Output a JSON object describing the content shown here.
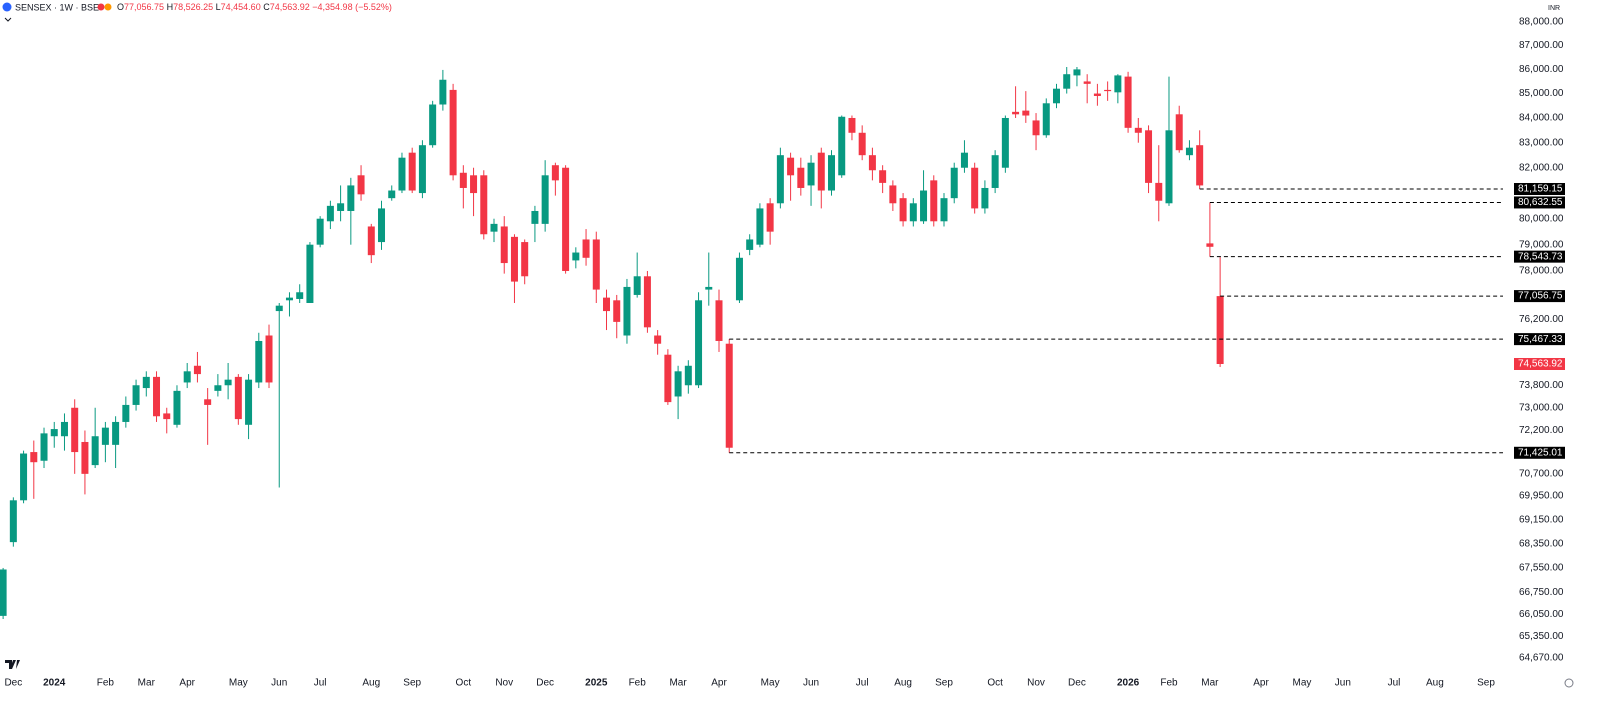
{
  "header": {
    "symbol": "SENSEX · 1W · BSE",
    "ohlc": [
      {
        "key": "O",
        "value": "77,056.75"
      },
      {
        "key": "H",
        "value": "78,526.25"
      },
      {
        "key": "L",
        "value": "74,454.60"
      },
      {
        "key": "C",
        "value": "74,563.92"
      }
    ],
    "change": "−4,354.98 (−5.52%)",
    "currency": "INR"
  },
  "chart_data": {
    "type": "candlestick",
    "log_scale": true,
    "grid": false,
    "up_color": "#089981",
    "down_color": "#f23645",
    "level_color": "#000000",
    "categories": [
      null,
      "Dec",
      null,
      null,
      null,
      "2024",
      null,
      null,
      null,
      null,
      "Feb",
      null,
      null,
      null,
      "Mar",
      null,
      null,
      null,
      "Apr",
      null,
      null,
      null,
      null,
      "May",
      null,
      null,
      null,
      "Jun",
      null,
      null,
      null,
      "Jul",
      null,
      null,
      null,
      null,
      "Aug",
      null,
      null,
      null,
      "Sep",
      null,
      null,
      null,
      null,
      "Oct",
      null,
      null,
      null,
      "Nov",
      null,
      null,
      null,
      "Dec",
      null,
      null,
      null,
      null,
      "2025",
      null,
      null,
      null,
      "Feb",
      null,
      null,
      null,
      "Mar",
      null,
      null,
      null,
      "Apr",
      null,
      null,
      null,
      null,
      "May",
      null,
      null,
      null,
      "Jun",
      null,
      null,
      null,
      null,
      "Jul",
      null,
      null,
      null,
      "Aug",
      null,
      null,
      null,
      "Sep",
      null,
      null,
      null,
      null,
      "Oct",
      null,
      null,
      null,
      "Nov",
      null,
      null,
      null,
      "Dec",
      null,
      null,
      null,
      null,
      "2026",
      null,
      null,
      null,
      "Feb",
      null,
      null,
      null,
      "Mar",
      null,
      null,
      null,
      null,
      "Apr",
      null,
      null,
      null,
      "May",
      null,
      null,
      null,
      "Jun",
      null,
      null,
      null,
      null,
      "Jul",
      null,
      null,
      null,
      "Aug",
      null,
      null,
      null,
      null,
      "Sep"
    ],
    "open": [
      66000,
      68400,
      69800,
      71450,
      71150,
      72000,
      72000,
      73000,
      71800,
      71000,
      71700,
      71700,
      72500,
      73100,
      73700,
      74100,
      72800,
      72400,
      73900,
      74500,
      73300,
      73600,
      73800,
      74100,
      72400,
      73900,
      75600,
      76500,
      76900,
      76950,
      76800,
      79000,
      79900,
      80300,
      80300,
      81700,
      79700,
      79100,
      80800,
      81100,
      82600,
      81000,
      82900,
      84550,
      85150,
      81800,
      81700,
      81700,
      79500,
      79700,
      79300,
      79100,
      79800,
      79800,
      82100,
      82000,
      78400,
      79200,
      79200,
      77000,
      76900,
      75600,
      77100,
      77800,
      75600,
      74900,
      73400,
      73800,
      73800,
      77300,
      76900,
      75300,
      76900,
      78800,
      79000,
      80600,
      80600,
      82400,
      82000,
      81300,
      82600,
      81100,
      81700,
      84000,
      83400,
      82500,
      81900,
      81300,
      80800,
      79900,
      79900,
      81500,
      79900,
      80800,
      82000,
      82000,
      80400,
      81200,
      82000,
      84250,
      84300,
      83900,
      83300,
      84600,
      85200,
      85750,
      85500,
      85000,
      85150,
      85050,
      85700,
      83600,
      83500,
      81400,
      80600,
      84150,
      82500,
      82900,
      79050,
      77056.75,
      null,
      null,
      null,
      null,
      null,
      null,
      null,
      null,
      null,
      null,
      null,
      null,
      null,
      null,
      null,
      null,
      null,
      null,
      null,
      null,
      null,
      null,
      null,
      null,
      null,
      null
    ],
    "high": [
      67550,
      69900,
      71500,
      71850,
      72300,
      72500,
      72800,
      73300,
      72200,
      73000,
      72500,
      72700,
      73400,
      74000,
      74300,
      74300,
      73000,
      73800,
      74600,
      75000,
      73700,
      74200,
      74600,
      74200,
      74200,
      75700,
      76000,
      76800,
      77200,
      77500,
      79100,
      80100,
      80700,
      81300,
      81600,
      82100,
      79800,
      80700,
      81300,
      82600,
      82800,
      83100,
      84700,
      85978,
      85400,
      82100,
      82000,
      81900,
      80000,
      80100,
      79400,
      79200,
      80500,
      82300,
      82200,
      82100,
      78900,
      79600,
      79500,
      77300,
      77100,
      77700,
      78700,
      78000,
      75800,
      75100,
      74500,
      74700,
      77200,
      78700,
      77300,
      75467.33,
      78700,
      79400,
      80600,
      80800,
      82800,
      82600,
      82400,
      82500,
      82800,
      82700,
      84100,
      84100,
      83700,
      82800,
      82100,
      81500,
      81000,
      80800,
      81900,
      81700,
      81000,
      82200,
      83100,
      82200,
      81500,
      82700,
      84100,
      85300,
      85100,
      84200,
      84800,
      85400,
      86100,
      86100,
      85800,
      85400,
      85500,
      85800,
      85900,
      84000,
      83700,
      82900,
      85700,
      84500,
      83100,
      83500,
      80632.55,
      78526.25,
      null,
      null,
      null,
      null,
      null,
      null,
      null,
      null,
      null,
      null,
      null,
      null,
      null,
      null,
      null,
      null,
      null,
      null,
      null,
      null,
      null,
      null,
      null,
      null,
      null,
      null
    ],
    "low": [
      65900,
      68250,
      69700,
      69850,
      70900,
      71600,
      71500,
      70700,
      70000,
      70900,
      71100,
      70900,
      72300,
      72900,
      73400,
      72500,
      72100,
      72300,
      73700,
      73900,
      71700,
      73400,
      73300,
      72400,
      71900,
      73700,
      73700,
      70234,
      76300,
      76800,
      76800,
      78900,
      79600,
      79900,
      79000,
      80700,
      78300,
      78800,
      80700,
      81000,
      81000,
      80800,
      82800,
      84300,
      81500,
      80400,
      80100,
      79200,
      79100,
      77900,
      76800,
      77500,
      79100,
      79500,
      80900,
      77900,
      78100,
      78200,
      76800,
      75800,
      75500,
      75300,
      77000,
      75700,
      74900,
      73100,
      72600,
      73500,
      73700,
      76700,
      75000,
      71425.01,
      76800,
      78600,
      78900,
      79000,
      80400,
      80700,
      80900,
      80500,
      80400,
      80900,
      81600,
      83100,
      82300,
      81500,
      81000,
      80300,
      79700,
      79700,
      79800,
      79700,
      79700,
      80600,
      81800,
      80200,
      80200,
      81000,
      81800,
      84000,
      83800,
      82700,
      83200,
      84400,
      85000,
      85300,
      84600,
      84500,
      84700,
      84600,
      83400,
      83000,
      81000,
      79900,
      80500,
      82600,
      82300,
      81159.15,
      78543.73,
      74454.6,
      null,
      null,
      null,
      null,
      null,
      null,
      null,
      null,
      null,
      null,
      null,
      null,
      null,
      null,
      null,
      null,
      null,
      null,
      null,
      null,
      null,
      null,
      null,
      null,
      null,
      null
    ],
    "close": [
      67500,
      69800,
      71400,
      71100,
      72100,
      72250,
      72500,
      71450,
      70700,
      72000,
      72300,
      72500,
      73100,
      73800,
      74100,
      72700,
      72600,
      73600,
      74300,
      74200,
      73100,
      73800,
      74000,
      72600,
      74000,
      75400,
      73900,
      76700,
      77000,
      77200,
      79000,
      80000,
      80500,
      80600,
      81300,
      80950,
      78600,
      80400,
      81100,
      82400,
      81100,
      82900,
      84550,
      85570,
      81700,
      81200,
      81000,
      79400,
      79800,
      78300,
      77600,
      77800,
      80300,
      81700,
      81500,
      78000,
      78700,
      78500,
      77300,
      76500,
      76100,
      77400,
      77800,
      75900,
      75300,
      73200,
      74300,
      74500,
      76900,
      77400,
      75400,
      71600,
      78500,
      79200,
      80400,
      79500,
      82500,
      81700,
      81200,
      82200,
      81100,
      82500,
      84050,
      83400,
      82500,
      81900,
      81400,
      80600,
      79900,
      80600,
      81100,
      79900,
      80800,
      82000,
      82600,
      80400,
      81200,
      82500,
      84000,
      84150,
      84100,
      83300,
      84600,
      85200,
      85800,
      86000,
      85400,
      84900,
      85100,
      85750,
      83600,
      83400,
      81400,
      80700,
      83500,
      82700,
      82800,
      81300,
      78918.9,
      74563.92,
      null,
      null,
      null,
      null,
      null,
      null,
      null,
      null,
      null,
      null,
      null,
      null,
      null,
      null,
      null,
      null,
      null,
      null,
      null,
      null,
      null,
      null,
      null,
      null,
      null,
      null
    ],
    "ylim": [
      64230,
      88940
    ],
    "yticks": [
      {
        "value": 88000,
        "label": "88,000.00"
      },
      {
        "value": 87000,
        "label": "87,000.00"
      },
      {
        "value": 86000,
        "label": "86,000.00"
      },
      {
        "value": 85000,
        "label": "85,000.00"
      },
      {
        "value": 84000,
        "label": "84,000.00"
      },
      {
        "value": 83000,
        "label": "83,000.00"
      },
      {
        "value": 82000,
        "label": "82,000.00"
      },
      {
        "value": 80000,
        "label": "80,000.00"
      },
      {
        "value": 79000,
        "label": "79,000.00"
      },
      {
        "value": 78000,
        "label": "78,000.00"
      },
      {
        "value": 76200,
        "label": "76,200.00"
      },
      {
        "value": 73800,
        "label": "73,800.00"
      },
      {
        "value": 73000,
        "label": "73,000.00"
      },
      {
        "value": 72200,
        "label": "72,200.00"
      },
      {
        "value": 70700,
        "label": "70,700.00"
      },
      {
        "value": 69950,
        "label": "69,950.00"
      },
      {
        "value": 69150,
        "label": "69,150.00"
      },
      {
        "value": 68350,
        "label": "68,350.00"
      },
      {
        "value": 67550,
        "label": "67,550.00"
      },
      {
        "value": 66750,
        "label": "66,750.00"
      },
      {
        "value": 66050,
        "label": "66,050.00"
      },
      {
        "value": 65350,
        "label": "65,350.00"
      },
      {
        "value": 64670,
        "label": "64,670.00"
      }
    ],
    "levels": [
      {
        "value": 81159.15,
        "label": "81,159.15"
      },
      {
        "value": 80632.55,
        "label": "80,632.55"
      },
      {
        "value": 78543.73,
        "label": "78,543.73"
      },
      {
        "value": 77056.75,
        "label": "77,056.75"
      },
      {
        "value": 75467.33,
        "label": "75,467.33"
      },
      {
        "value": 71425.01,
        "label": "71,425.01"
      }
    ],
    "last_price": {
      "value": 74563.92,
      "label": "74,563.92"
    }
  }
}
